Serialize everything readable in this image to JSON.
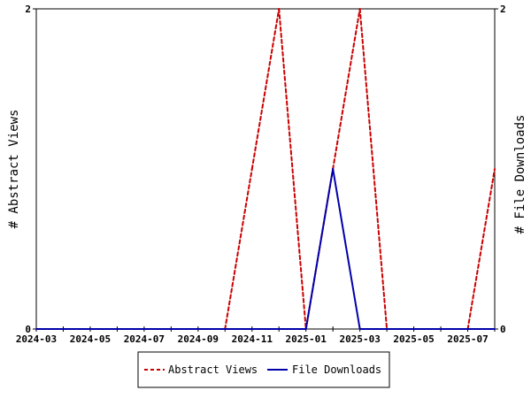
{
  "chart_data": {
    "type": "line",
    "x": [
      "2024-03",
      "2024-04",
      "2024-05",
      "2024-06",
      "2024-07",
      "2024-08",
      "2024-09",
      "2024-10",
      "2024-11",
      "2024-12",
      "2025-01",
      "2025-02",
      "2025-03",
      "2025-04",
      "2025-05",
      "2025-06",
      "2025-07",
      "2025-08"
    ],
    "x_tick_labels": [
      "2024-03",
      "2024-05",
      "2024-07",
      "2024-09",
      "2024-11",
      "2025-01",
      "2025-03",
      "2025-05",
      "2025-07"
    ],
    "series": [
      {
        "name": "Abstract Views",
        "axis": "left",
        "color": "#cc0000",
        "dash": "dashed",
        "values": [
          0,
          0,
          0,
          0,
          0,
          0,
          0,
          0,
          1,
          2,
          0,
          1,
          2,
          0,
          0,
          0,
          0,
          1
        ]
      },
      {
        "name": "File Downloads",
        "axis": "right",
        "color": "#0000aa",
        "dash": "solid",
        "values": [
          0,
          0,
          0,
          0,
          0,
          0,
          0,
          0,
          0,
          0,
          0,
          1,
          0,
          0,
          0,
          0,
          0,
          0
        ]
      }
    ],
    "ylabel_left": "# Abstract Views",
    "ylabel_right": "# File Downloads",
    "ylim_left": [
      0,
      2
    ],
    "ylim_right": [
      0,
      2
    ],
    "y_ticks_left": [
      "0",
      "2"
    ],
    "y_ticks_right": [
      "0",
      "2"
    ],
    "legend_position": "bottom-center",
    "grid": false
  }
}
